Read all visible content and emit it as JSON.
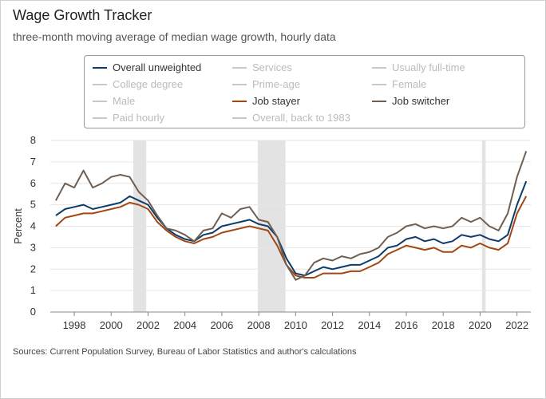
{
  "title": "Wage Growth Tracker",
  "subtitle": "three-month moving average of median wage growth, hourly data",
  "source": "Sources: Current Population Survey, Bureau of Labor Statistics and author's calculations",
  "legend": [
    {
      "label": "Overall unweighted",
      "color": "#0d3c6b",
      "active": true
    },
    {
      "label": "Services",
      "color": "#c8c8c8",
      "active": false
    },
    {
      "label": "Usually full-time",
      "color": "#c8c8c8",
      "active": false
    },
    {
      "label": "College degree",
      "color": "#c8c8c8",
      "active": false
    },
    {
      "label": "Prime-age",
      "color": "#c8c8c8",
      "active": false
    },
    {
      "label": "Female",
      "color": "#c8c8c8",
      "active": false
    },
    {
      "label": "Male",
      "color": "#c8c8c8",
      "active": false
    },
    {
      "label": "Job stayer",
      "color": "#a24714",
      "active": true
    },
    {
      "label": "Job switcher",
      "color": "#6f5f52",
      "active": true
    },
    {
      "label": "Paid hourly",
      "color": "#c8c8c8",
      "active": false
    },
    {
      "label": "Overall, back to 1983",
      "color": "#c8c8c8",
      "active": false
    }
  ],
  "chart_data": {
    "type": "line",
    "ylabel": "Percent",
    "xlabel": "",
    "ylim": [
      0,
      8
    ],
    "xlim": [
      1996.7,
      2022.75
    ],
    "yticks": [
      "0",
      "1",
      "2",
      "3",
      "4",
      "5",
      "6",
      "7",
      "8"
    ],
    "xticks": [
      "1998",
      "2000",
      "2002",
      "2004",
      "2006",
      "2008",
      "2010",
      "2012",
      "2014",
      "2016",
      "2018",
      "2020",
      "2022"
    ],
    "grid": true,
    "recessions": [
      [
        2001.2,
        2001.9
      ],
      [
        2007.95,
        2009.45
      ],
      [
        2020.1,
        2020.3
      ]
    ],
    "x": [
      1997.0,
      1997.5,
      1998.0,
      1998.5,
      1999.0,
      1999.5,
      2000.0,
      2000.5,
      2001.0,
      2001.5,
      2002.0,
      2002.5,
      2003.0,
      2003.5,
      2004.0,
      2004.5,
      2005.0,
      2005.5,
      2006.0,
      2006.5,
      2007.0,
      2007.5,
      2008.0,
      2008.5,
      2009.0,
      2009.5,
      2010.0,
      2010.5,
      2011.0,
      2011.5,
      2012.0,
      2012.5,
      2013.0,
      2013.5,
      2014.0,
      2014.5,
      2015.0,
      2015.5,
      2016.0,
      2016.5,
      2017.0,
      2017.5,
      2018.0,
      2018.5,
      2019.0,
      2019.5,
      2020.0,
      2020.5,
      2021.0,
      2021.5,
      2022.0,
      2022.5
    ],
    "series": [
      {
        "name": "Overall unweighted",
        "color": "#0d3c6b",
        "values": [
          4.5,
          4.8,
          4.9,
          5.0,
          4.8,
          4.9,
          5.0,
          5.1,
          5.4,
          5.2,
          5.0,
          4.4,
          3.9,
          3.6,
          3.4,
          3.3,
          3.6,
          3.7,
          4.0,
          4.1,
          4.2,
          4.3,
          4.1,
          4.0,
          3.5,
          2.5,
          1.8,
          1.7,
          1.9,
          2.1,
          2.0,
          2.1,
          2.2,
          2.2,
          2.4,
          2.6,
          3.0,
          3.1,
          3.4,
          3.5,
          3.3,
          3.4,
          3.2,
          3.3,
          3.6,
          3.5,
          3.6,
          3.4,
          3.3,
          3.6,
          5.0,
          6.1
        ]
      },
      {
        "name": "Job stayer",
        "color": "#a24714",
        "values": [
          4.0,
          4.4,
          4.5,
          4.6,
          4.6,
          4.7,
          4.8,
          4.9,
          5.1,
          5.0,
          4.8,
          4.2,
          3.8,
          3.5,
          3.3,
          3.2,
          3.4,
          3.5,
          3.7,
          3.8,
          3.9,
          4.0,
          3.9,
          3.8,
          3.1,
          2.2,
          1.7,
          1.6,
          1.6,
          1.8,
          1.8,
          1.8,
          1.9,
          1.9,
          2.1,
          2.3,
          2.7,
          2.9,
          3.1,
          3.0,
          2.9,
          3.0,
          2.8,
          2.8,
          3.1,
          3.0,
          3.2,
          3.0,
          2.9,
          3.2,
          4.6,
          5.4
        ]
      },
      {
        "name": "Job switcher",
        "color": "#6f5f52",
        "values": [
          5.2,
          6.0,
          5.8,
          6.6,
          5.8,
          6.0,
          6.3,
          6.4,
          6.3,
          5.6,
          5.2,
          4.5,
          3.9,
          3.8,
          3.6,
          3.3,
          3.8,
          3.9,
          4.6,
          4.4,
          4.8,
          4.9,
          4.3,
          4.2,
          3.5,
          2.2,
          1.5,
          1.7,
          2.3,
          2.5,
          2.4,
          2.6,
          2.5,
          2.7,
          2.8,
          3.0,
          3.5,
          3.7,
          4.0,
          4.1,
          3.9,
          4.0,
          3.9,
          4.0,
          4.4,
          4.2,
          4.4,
          4.0,
          3.8,
          4.6,
          6.3,
          7.5
        ]
      }
    ]
  }
}
